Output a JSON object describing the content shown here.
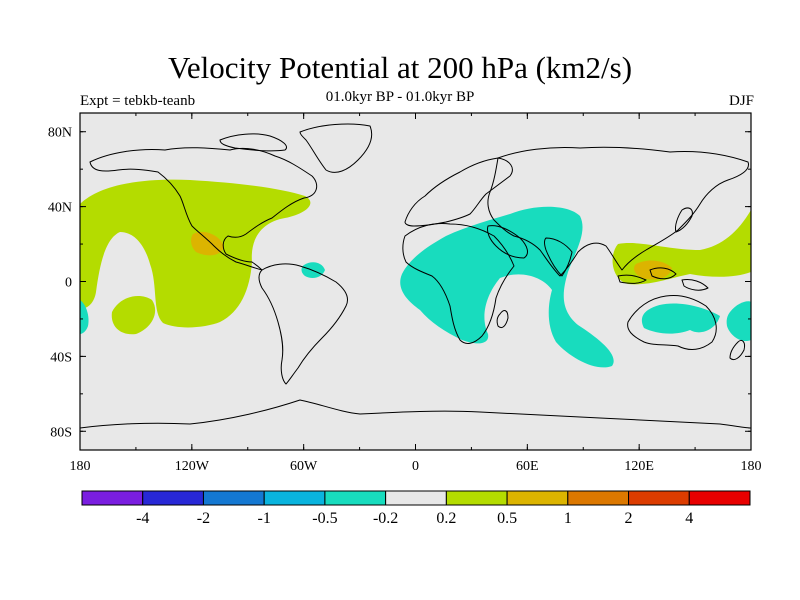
{
  "header": {
    "title": "Velocity Potential at 200 hPa (km2/s)",
    "subtitle": "01.0kyr BP - 01.0kyr BP",
    "left_label": "Expt = tebkb-teanb",
    "right_label": "DJF"
  },
  "map": {
    "lat_labels": [
      "80N",
      "40N",
      "0",
      "40S",
      "80S"
    ],
    "lat_values": [
      80,
      40,
      0,
      -40,
      -80
    ],
    "lon_labels": [
      "180",
      "120W",
      "60W",
      "0",
      "60E",
      "120E",
      "180"
    ],
    "lon_values": [
      -180,
      -120,
      -60,
      0,
      60,
      120,
      180
    ],
    "background_color": "#e8e8e8"
  },
  "colorbar": {
    "colors": [
      "#7a1ee0",
      "#2828d6",
      "#1478d2",
      "#0ab4de",
      "#18dcbe",
      "#e8e8e8",
      "#b4dc00",
      "#dcb400",
      "#dc7800",
      "#dc3c00",
      "#e80000"
    ],
    "labels": [
      "-4",
      "-2",
      "-1",
      "-0.5",
      "-0.2",
      "0.2",
      "0.5",
      "1",
      "2",
      "4"
    ]
  },
  "fields": {
    "positive_color": "#b4dc00",
    "positive_strong_color": "#dcb400",
    "negative_color": "#18dcbe"
  }
}
